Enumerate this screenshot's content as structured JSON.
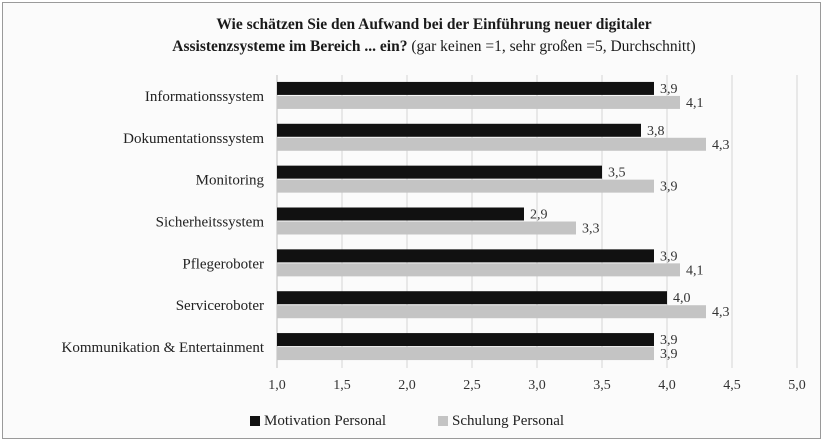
{
  "chart_data": {
    "type": "bar",
    "orientation": "horizontal",
    "title_bold_line1": "Wie schätzen Sie den Aufwand  bei der Einführung  neuer digitaler",
    "title_bold_line2": "Assistenzsysteme im Bereich ... ein?",
    "title_normal_line2": " (gar keinen =1, sehr großen =5, Durchschnitt)",
    "categories": [
      "Informationssystem",
      "Dokumentationssystem",
      "Monitoring",
      "Sicherheitssystem",
      "Pflegeroboter",
      "Serviceroboter",
      "Kommunikation & Entertainment"
    ],
    "series": [
      {
        "name": "Motivation Personal",
        "color": "#111111",
        "values": [
          3.9,
          3.8,
          3.5,
          2.9,
          3.9,
          4.0,
          3.9
        ],
        "labels": [
          "3,9",
          "3,8",
          "3,5",
          "2,9",
          "3,9",
          "4,0",
          "3,9"
        ]
      },
      {
        "name": "Schulung Personal",
        "color": "#c4c4c4",
        "values": [
          4.1,
          4.3,
          3.9,
          3.3,
          4.1,
          4.3,
          3.9
        ],
        "labels": [
          "4,1",
          "4,3",
          "3,9",
          "3,3",
          "4,1",
          "4,3",
          "3,9"
        ]
      }
    ],
    "xlim": [
      1.0,
      5.0
    ],
    "xticks": [
      "1,0",
      "1,5",
      "2,0",
      "2,5",
      "3,0",
      "3,5",
      "4,0",
      "4,5",
      "5,0"
    ],
    "grid": "vertical",
    "legend": "bottom-left"
  }
}
